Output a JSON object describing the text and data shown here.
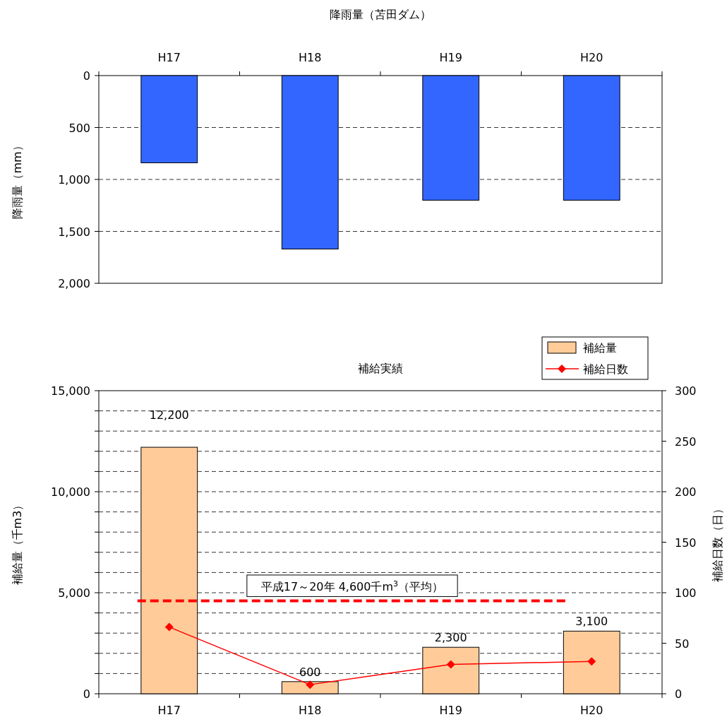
{
  "chart_data": [
    {
      "type": "bar",
      "title": "降雨量（苫田ダム）",
      "ylabel": "降雨量（mm）",
      "categories": [
        "H17",
        "H18",
        "H19",
        "H20"
      ],
      "series": [
        {
          "color": "#3366ff",
          "values": [
            840,
            1670,
            1200,
            1200
          ]
        }
      ],
      "ylim": [
        2000,
        0
      ],
      "yticks": [
        {
          "value": 0,
          "label": "0"
        },
        {
          "value": 500,
          "label": "500"
        },
        {
          "value": 1000,
          "label": "1,000"
        },
        {
          "value": 1500,
          "label": "1,500"
        },
        {
          "value": 2000,
          "label": "2,000"
        }
      ],
      "grid": "y"
    },
    {
      "type": "bar",
      "title": "補給実績",
      "ylabel": "補給量（千m3）",
      "y2label": "補給日数（日）",
      "categories": [
        "H17",
        "H18",
        "H19",
        "H20"
      ],
      "series": [
        {
          "name": "補給量",
          "color": "#ffcc99",
          "values": [
            12200,
            600,
            2300,
            3100
          ],
          "value_labels": [
            "12,200",
            "600",
            "2,300",
            "3,100"
          ]
        },
        {
          "name": "補給日数",
          "type": "line",
          "axis": "y2",
          "color": "#ff0000",
          "marker": "diamond",
          "values": [
            66,
            9,
            29,
            32
          ]
        }
      ],
      "ylim": [
        0,
        15000
      ],
      "yticks": [
        {
          "value": 0,
          "label": "0"
        },
        {
          "value": 1000,
          "label": null
        },
        {
          "value": 2000,
          "label": null
        },
        {
          "value": 3000,
          "label": null
        },
        {
          "value": 4000,
          "label": null
        },
        {
          "value": 5000,
          "label": "5,000"
        },
        {
          "value": 6000,
          "label": null
        },
        {
          "value": 7000,
          "label": null
        },
        {
          "value": 8000,
          "label": null
        },
        {
          "value": 9000,
          "label": null
        },
        {
          "value": 10000,
          "label": "10,000"
        },
        {
          "value": 11000,
          "label": null
        },
        {
          "value": 12000,
          "label": null
        },
        {
          "value": 13000,
          "label": null
        },
        {
          "value": 14000,
          "label": null
        },
        {
          "value": 15000,
          "label": "15,000"
        }
      ],
      "y2lim": [
        0,
        300
      ],
      "y2ticks": [
        0,
        50,
        100,
        150,
        200,
        250,
        300
      ],
      "grid": "y",
      "legend": "top right",
      "ref_lines": [
        {
          "axis": "y",
          "value": 4600,
          "label": "平成17～20年  4,600千m$^{3}$（平均）",
          "color": "#ff0000",
          "line_style": "dashed"
        }
      ]
    }
  ]
}
